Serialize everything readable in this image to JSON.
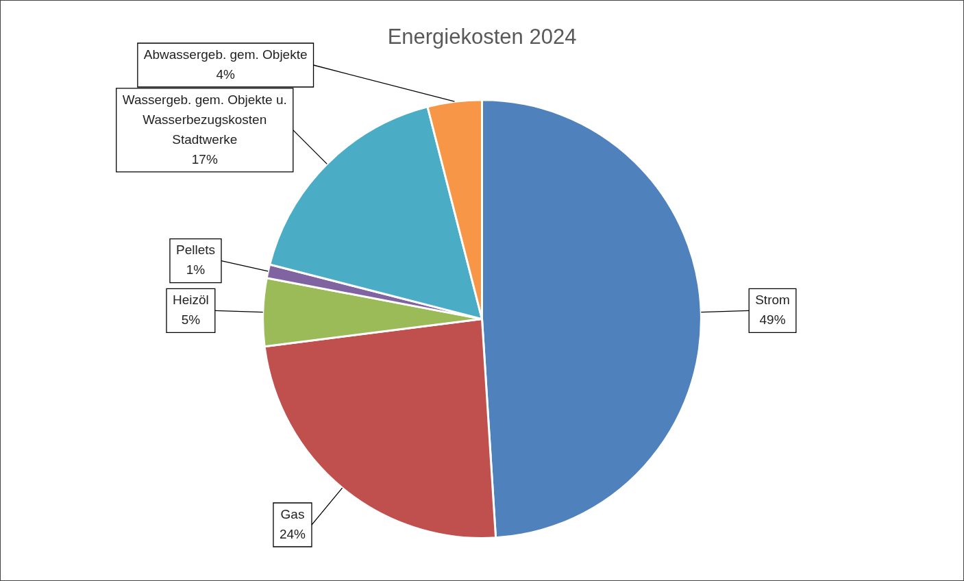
{
  "chart_data": {
    "type": "pie",
    "title": "Energiekosten 2024",
    "categories": [
      "Strom",
      "Gas",
      "Heizöl",
      "Pellets",
      "Wassergeb. gem. Objekte u. Wasserbezugskosten Stadtwerke",
      "Abwassergeb. gem. Objekte"
    ],
    "values": [
      49,
      24,
      5,
      1,
      17,
      4
    ],
    "value_labels": [
      "49%",
      "24%",
      "5%",
      "1%",
      "17%",
      "4%"
    ],
    "colors": [
      "#4f81bd",
      "#c0504d",
      "#9bbb59",
      "#8064a2",
      "#4bacc6",
      "#f79646"
    ],
    "legend": false
  }
}
